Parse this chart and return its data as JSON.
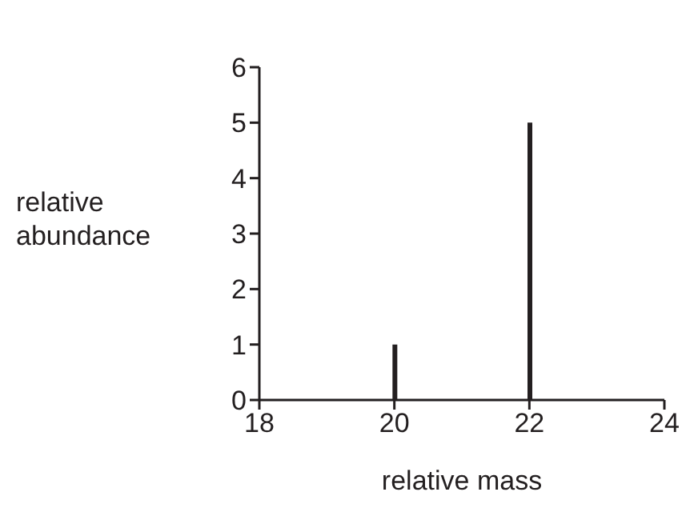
{
  "chart_data": {
    "type": "bar",
    "xlabel": "relative mass",
    "ylabel": "relative abundance",
    "x": [
      20,
      22
    ],
    "values": [
      1,
      5
    ],
    "color": "#231f20",
    "xlim": [
      18,
      24
    ],
    "xticks": [
      18,
      20,
      22,
      24
    ],
    "ylim": [
      0,
      6
    ],
    "yticks": [
      0,
      1,
      2,
      3,
      4,
      5,
      6
    ]
  }
}
